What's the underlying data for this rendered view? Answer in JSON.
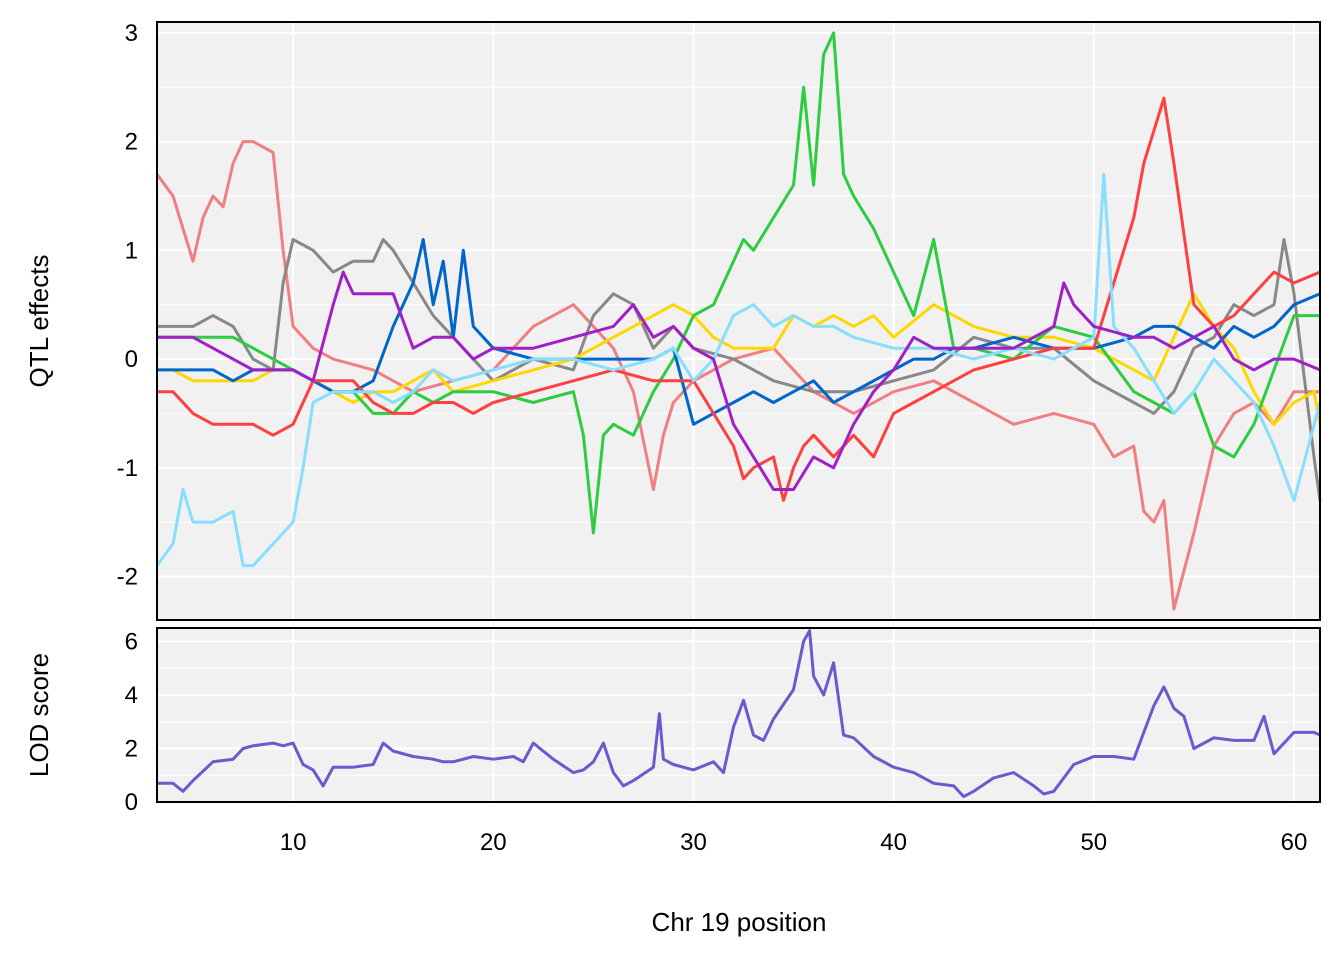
{
  "chart_data": [
    {
      "type": "line",
      "panel": "effects",
      "ylabel": "QTL effects",
      "xlim": [
        3.2,
        61.3
      ],
      "ylim": [
        -2.4,
        3.1
      ],
      "grid": true,
      "y_ticks": [
        -2,
        -1,
        0,
        1,
        2,
        3
      ],
      "x_ticks": [
        10,
        20,
        30,
        40,
        50,
        60
      ],
      "series": [
        {
          "color": "#F08080",
          "x": [
            3.2,
            4,
            5,
            5.5,
            6,
            6.5,
            7,
            7.5,
            8,
            9,
            9.5,
            10,
            11,
            12,
            14,
            16,
            18,
            20,
            22,
            24,
            26,
            27,
            28,
            28.5,
            29,
            30,
            32,
            34,
            36,
            38,
            40,
            42,
            44,
            45,
            46,
            48,
            50,
            51,
            52,
            52.5,
            53,
            53.5,
            54,
            55,
            56,
            57,
            58,
            59,
            60,
            61.3
          ],
          "y": [
            1.7,
            1.5,
            0.9,
            1.3,
            1.5,
            1.4,
            1.8,
            2.0,
            2.0,
            1.9,
            1.0,
            0.3,
            0.1,
            0.0,
            -0.1,
            -0.3,
            -0.2,
            -0.1,
            0.3,
            0.5,
            0.1,
            -0.3,
            -1.2,
            -0.7,
            -0.4,
            -0.2,
            0.0,
            0.1,
            -0.3,
            -0.5,
            -0.3,
            -0.2,
            -0.4,
            -0.5,
            -0.6,
            -0.5,
            -0.6,
            -0.9,
            -0.8,
            -1.4,
            -1.5,
            -1.3,
            -2.3,
            -1.6,
            -0.8,
            -0.5,
            -0.4,
            -0.6,
            -0.3,
            -0.3
          ]
        },
        {
          "color": "#888888",
          "x": [
            3.2,
            4,
            5,
            6,
            7,
            8,
            9,
            9.5,
            10,
            11,
            12,
            13,
            14,
            14.5,
            15,
            16,
            17,
            18,
            20,
            22,
            24,
            25,
            26,
            27,
            28,
            29,
            30,
            32,
            34,
            36,
            38,
            40,
            42,
            44,
            46,
            48,
            50,
            51,
            52,
            53,
            54,
            55,
            56,
            57,
            58,
            59,
            59.5,
            60,
            61,
            61.3
          ],
          "y": [
            0.3,
            0.3,
            0.3,
            0.4,
            0.3,
            0.0,
            -0.1,
            0.7,
            1.1,
            1.0,
            0.8,
            0.9,
            0.9,
            1.1,
            1.0,
            0.7,
            0.4,
            0.2,
            -0.2,
            0.0,
            -0.1,
            0.4,
            0.6,
            0.5,
            0.1,
            0.3,
            0.1,
            0.0,
            -0.2,
            -0.3,
            -0.3,
            -0.2,
            -0.1,
            0.2,
            0.1,
            0.1,
            -0.2,
            -0.3,
            -0.4,
            -0.5,
            -0.3,
            0.1,
            0.2,
            0.5,
            0.4,
            0.5,
            1.1,
            0.6,
            -0.9,
            -1.3
          ]
        },
        {
          "color": "#FFD700",
          "x": [
            3.2,
            4,
            5,
            6,
            7,
            8,
            9,
            10,
            11,
            12,
            13,
            14,
            15,
            16,
            17,
            18,
            20,
            22,
            24,
            26,
            28,
            29,
            30,
            31,
            32,
            34,
            35,
            36,
            37,
            38,
            39,
            40,
            42,
            44,
            46,
            48,
            50,
            52,
            53,
            54,
            55,
            56,
            57,
            58,
            59,
            60,
            61,
            61.3
          ],
          "y": [
            -0.1,
            -0.1,
            -0.2,
            -0.2,
            -0.2,
            -0.2,
            -0.1,
            -0.1,
            -0.2,
            -0.3,
            -0.4,
            -0.3,
            -0.3,
            -0.2,
            -0.1,
            -0.3,
            -0.2,
            -0.1,
            0.0,
            0.2,
            0.4,
            0.5,
            0.4,
            0.2,
            0.1,
            0.1,
            0.4,
            0.3,
            0.4,
            0.3,
            0.4,
            0.2,
            0.5,
            0.3,
            0.2,
            0.2,
            0.1,
            -0.1,
            -0.2,
            0.2,
            0.6,
            0.3,
            0.1,
            -0.3,
            -0.6,
            -0.4,
            -0.3,
            -0.6
          ]
        },
        {
          "color": "#2ECC40",
          "x": [
            3.2,
            4,
            5,
            6,
            7,
            8,
            9,
            10,
            11,
            12,
            13,
            14,
            15,
            16,
            17,
            18,
            19,
            20,
            22,
            24,
            24.5,
            25,
            25.5,
            26,
            27,
            28,
            29,
            30,
            31,
            32,
            32.5,
            33,
            34,
            35,
            35.5,
            36,
            36.5,
            37,
            37.5,
            38,
            39,
            40,
            41,
            42,
            43,
            44,
            46,
            48,
            50,
            52,
            53,
            54,
            55,
            56,
            57,
            58,
            59,
            60,
            61.3
          ],
          "y": [
            0.2,
            0.2,
            0.2,
            0.2,
            0.2,
            0.1,
            0.0,
            -0.1,
            -0.2,
            -0.3,
            -0.3,
            -0.5,
            -0.5,
            -0.3,
            -0.4,
            -0.3,
            -0.3,
            -0.3,
            -0.4,
            -0.3,
            -0.7,
            -1.6,
            -0.7,
            -0.6,
            -0.7,
            -0.3,
            0.0,
            0.4,
            0.5,
            0.9,
            1.1,
            1.0,
            1.3,
            1.6,
            2.5,
            1.6,
            2.8,
            3.0,
            1.7,
            1.5,
            1.2,
            0.8,
            0.4,
            1.1,
            0.1,
            0.1,
            0.0,
            0.3,
            0.2,
            -0.3,
            -0.4,
            -0.5,
            -0.3,
            -0.8,
            -0.9,
            -0.6,
            -0.1,
            0.4,
            0.4
          ]
        },
        {
          "color": "#0066CC",
          "x": [
            3.2,
            4,
            5,
            6,
            7,
            8,
            9,
            10,
            11,
            12,
            13,
            14,
            15,
            16,
            16.5,
            17,
            17.5,
            18,
            18.5,
            19,
            20,
            22,
            24,
            26,
            28,
            29,
            30,
            31,
            32,
            33,
            34,
            35,
            36,
            37,
            38,
            39,
            40,
            41,
            42,
            43,
            44,
            46,
            48,
            50,
            52,
            53,
            54,
            55,
            56,
            57,
            58,
            59,
            60,
            61.3
          ],
          "y": [
            -0.1,
            -0.1,
            -0.1,
            -0.1,
            -0.2,
            -0.1,
            -0.1,
            -0.1,
            -0.2,
            -0.3,
            -0.3,
            -0.2,
            0.3,
            0.7,
            1.1,
            0.5,
            0.9,
            0.2,
            1.0,
            0.3,
            0.1,
            0.0,
            0.0,
            0.0,
            0.0,
            0.1,
            -0.6,
            -0.5,
            -0.4,
            -0.3,
            -0.4,
            -0.3,
            -0.2,
            -0.4,
            -0.3,
            -0.2,
            -0.1,
            0.0,
            0.0,
            0.1,
            0.1,
            0.2,
            0.1,
            0.1,
            0.2,
            0.3,
            0.3,
            0.2,
            0.1,
            0.3,
            0.2,
            0.3,
            0.5,
            0.6
          ]
        },
        {
          "color": "#FF4040",
          "x": [
            3.2,
            4,
            5,
            6,
            7,
            8,
            9,
            10,
            11,
            12,
            13,
            14,
            15,
            16,
            17,
            18,
            19,
            20,
            22,
            24,
            26,
            28,
            30,
            32,
            32.5,
            33,
            34,
            34.5,
            35,
            35.5,
            36,
            37,
            38,
            39,
            40,
            41,
            42,
            43,
            44,
            46,
            48,
            50,
            51,
            52,
            52.5,
            53,
            53.5,
            54,
            55,
            56,
            57,
            58,
            59,
            60,
            61.3
          ],
          "y": [
            -0.3,
            -0.3,
            -0.5,
            -0.6,
            -0.6,
            -0.6,
            -0.7,
            -0.6,
            -0.2,
            -0.2,
            -0.2,
            -0.4,
            -0.5,
            -0.5,
            -0.4,
            -0.4,
            -0.5,
            -0.4,
            -0.3,
            -0.2,
            -0.1,
            -0.2,
            -0.2,
            -0.8,
            -1.1,
            -1.0,
            -0.9,
            -1.3,
            -1.0,
            -0.8,
            -0.7,
            -0.9,
            -0.7,
            -0.9,
            -0.5,
            -0.4,
            -0.3,
            -0.2,
            -0.1,
            0.0,
            0.1,
            0.1,
            0.7,
            1.3,
            1.8,
            2.1,
            2.4,
            1.8,
            0.5,
            0.3,
            0.4,
            0.6,
            0.8,
            0.7,
            0.8
          ]
        },
        {
          "color": "#87DEFF",
          "x": [
            3.2,
            4,
            4.5,
            5,
            6,
            7,
            7.5,
            8,
            9,
            10,
            10.5,
            11,
            12,
            13,
            14,
            15,
            16,
            17,
            18,
            20,
            22,
            24,
            26,
            28,
            29,
            30,
            31,
            32,
            33,
            34,
            35,
            36,
            37,
            38,
            40,
            42,
            44,
            46,
            48,
            50,
            50.5,
            51,
            52,
            53,
            54,
            55,
            56,
            57,
            58,
            59,
            60,
            61.3
          ],
          "y": [
            -1.9,
            -1.7,
            -1.2,
            -1.5,
            -1.5,
            -1.4,
            -1.9,
            -1.9,
            -1.7,
            -1.5,
            -1.0,
            -0.4,
            -0.3,
            -0.3,
            -0.3,
            -0.4,
            -0.3,
            -0.1,
            -0.2,
            -0.1,
            0.0,
            0.0,
            -0.1,
            0.0,
            0.1,
            -0.2,
            0.0,
            0.4,
            0.5,
            0.3,
            0.4,
            0.3,
            0.3,
            0.2,
            0.1,
            0.1,
            0.0,
            0.1,
            0.0,
            0.2,
            1.7,
            0.3,
            0.1,
            -0.2,
            -0.5,
            -0.3,
            0.0,
            -0.2,
            -0.4,
            -0.8,
            -1.3,
            -0.4
          ]
        },
        {
          "color": "#A020C8",
          "x": [
            3.2,
            4,
            5,
            6,
            7,
            8,
            9,
            10,
            11,
            12,
            12.5,
            13,
            14,
            15,
            16,
            17,
            18,
            19,
            20,
            22,
            24,
            26,
            27,
            28,
            29,
            30,
            31,
            32,
            33,
            34,
            35,
            36,
            37,
            38,
            39,
            40,
            41,
            42,
            44,
            46,
            48,
            48.5,
            49,
            50,
            52,
            53,
            54,
            55,
            56,
            57,
            58,
            59,
            60,
            61.3
          ],
          "y": [
            0.2,
            0.2,
            0.2,
            0.1,
            0.0,
            -0.1,
            -0.1,
            -0.1,
            -0.2,
            0.5,
            0.8,
            0.6,
            0.6,
            0.6,
            0.1,
            0.2,
            0.2,
            0.0,
            0.1,
            0.1,
            0.2,
            0.3,
            0.5,
            0.2,
            0.3,
            0.1,
            0.0,
            -0.6,
            -0.9,
            -1.2,
            -1.2,
            -0.9,
            -1.0,
            -0.6,
            -0.3,
            -0.1,
            0.2,
            0.1,
            0.1,
            0.1,
            0.3,
            0.7,
            0.5,
            0.3,
            0.2,
            0.2,
            0.1,
            0.2,
            0.3,
            0.0,
            -0.1,
            0.0,
            0.0,
            -0.1
          ]
        }
      ]
    },
    {
      "type": "line",
      "panel": "lod",
      "ylabel": "LOD score",
      "xlabel": "Chr 19 position",
      "xlim": [
        3.2,
        61.3
      ],
      "ylim": [
        0,
        6.5
      ],
      "grid": true,
      "y_ticks": [
        0,
        2,
        4,
        6
      ],
      "x_ticks": [
        10,
        20,
        30,
        40,
        50,
        60
      ],
      "series": [
        {
          "color": "#6A5ACD",
          "x": [
            3.2,
            4,
            4.5,
            5,
            6,
            7,
            7.5,
            8,
            9,
            9.5,
            10,
            10.5,
            11,
            11.5,
            12,
            13,
            14,
            14.5,
            15,
            16,
            17,
            17.5,
            18,
            19,
            20,
            21,
            21.5,
            22,
            23,
            24,
            24.5,
            25,
            25.5,
            26,
            26.5,
            27,
            28,
            28.3,
            28.5,
            29,
            30,
            31,
            31.5,
            32,
            32.5,
            33,
            33.5,
            34,
            35,
            35.5,
            35.8,
            36,
            36.5,
            37,
            37.5,
            38,
            39,
            40,
            41,
            42,
            43,
            43.5,
            44,
            45,
            46,
            47,
            47.5,
            48,
            49,
            50,
            51,
            52,
            52.5,
            53,
            53.5,
            54,
            54.5,
            55,
            56,
            57,
            58,
            58.5,
            59,
            60,
            61,
            61.3
          ],
          "y": [
            0.7,
            0.7,
            0.4,
            0.8,
            1.5,
            1.6,
            2.0,
            2.1,
            2.2,
            2.1,
            2.2,
            1.4,
            1.2,
            0.6,
            1.3,
            1.3,
            1.4,
            2.2,
            1.9,
            1.7,
            1.6,
            1.5,
            1.5,
            1.7,
            1.6,
            1.7,
            1.5,
            2.2,
            1.6,
            1.1,
            1.2,
            1.5,
            2.2,
            1.1,
            0.6,
            0.8,
            1.3,
            3.3,
            1.6,
            1.4,
            1.2,
            1.5,
            1.1,
            2.8,
            3.8,
            2.5,
            2.3,
            3.1,
            4.2,
            6.0,
            6.4,
            4.7,
            4.0,
            5.2,
            2.5,
            2.4,
            1.7,
            1.3,
            1.1,
            0.7,
            0.6,
            0.2,
            0.4,
            0.9,
            1.1,
            0.6,
            0.3,
            0.4,
            1.4,
            1.7,
            1.7,
            1.6,
            2.6,
            3.6,
            4.3,
            3.5,
            3.2,
            2.0,
            2.4,
            2.3,
            2.3,
            3.2,
            1.8,
            2.6,
            2.6,
            2.5
          ]
        }
      ]
    }
  ]
}
